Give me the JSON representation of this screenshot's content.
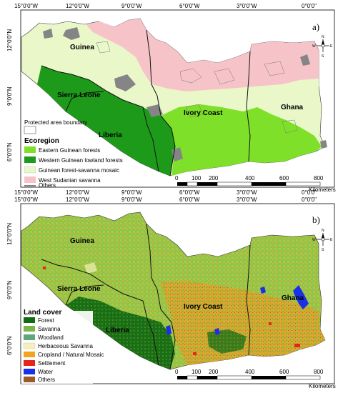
{
  "panels": [
    {
      "letter": "a)",
      "lon_ticks": [
        "15°0'0\"W",
        "12°0'0\"W",
        "9°0'0\"W",
        "6°0'0\"W",
        "3°0'0\"W",
        "0°0'0\""
      ],
      "lat_ticks": [
        "12°0'0\"N",
        "9°0'0\"N",
        "6°0'0\"N"
      ],
      "countries": [
        "Guinea",
        "Sierra Leone",
        "Liberia",
        "Ivory Coast",
        "Ghana"
      ],
      "legend": {
        "boundary_label": "Protected area boundary",
        "title": "Ecoregion",
        "items": [
          {
            "label": "Eastern Guinean forests",
            "color": "#7fe02a"
          },
          {
            "label": "Western Guinean lowland forests",
            "color": "#1e9a1a"
          },
          {
            "label": "Guinean forest-savanna mosaic",
            "color": "#e9f7c9"
          },
          {
            "label": "West Sudanian savanna",
            "color": "#f6c4c8"
          },
          {
            "label": "Others",
            "color": "#858585"
          }
        ]
      },
      "scale": {
        "labels": [
          "0",
          "100",
          "200",
          "400",
          "600",
          "800"
        ],
        "unit": "Kilometers"
      }
    },
    {
      "letter": "b)",
      "lon_ticks": [
        "15°0'0\"W",
        "12°0'0\"W",
        "9°0'0\"W",
        "6°0'0\"W",
        "3°0'0\"W",
        "0°0'0\""
      ],
      "lat_ticks": [
        "12°0'0\"N",
        "9°0'0\"N",
        "6°0'0\"N"
      ],
      "countries": [
        "Guinea",
        "Sierra Leone",
        "Liberia",
        "Ivory Coast",
        "Ghana"
      ],
      "legend": {
        "title": "Land cover",
        "items": [
          {
            "label": "Forest",
            "color": "#116b10"
          },
          {
            "label": "Savanna",
            "color": "#7ab648"
          },
          {
            "label": "Woodland",
            "color": "#5fa67a"
          },
          {
            "label": "Herbaceous Savanna",
            "color": "#f5f0b8"
          },
          {
            "label": "Cropland / Natural Mosaic",
            "color": "#f2a41c"
          },
          {
            "label": "Settlement",
            "color": "#e8231d"
          },
          {
            "label": "Water",
            "color": "#1a2fe8"
          },
          {
            "label": "Others",
            "color": "#9b5a2a"
          }
        ]
      },
      "scale": {
        "labels": [
          "0",
          "100",
          "200",
          "400",
          "600",
          "800"
        ],
        "unit": "Kilometers"
      }
    }
  ],
  "north_arrow": {
    "letters": [
      "N",
      "S",
      "E",
      "W"
    ]
  }
}
